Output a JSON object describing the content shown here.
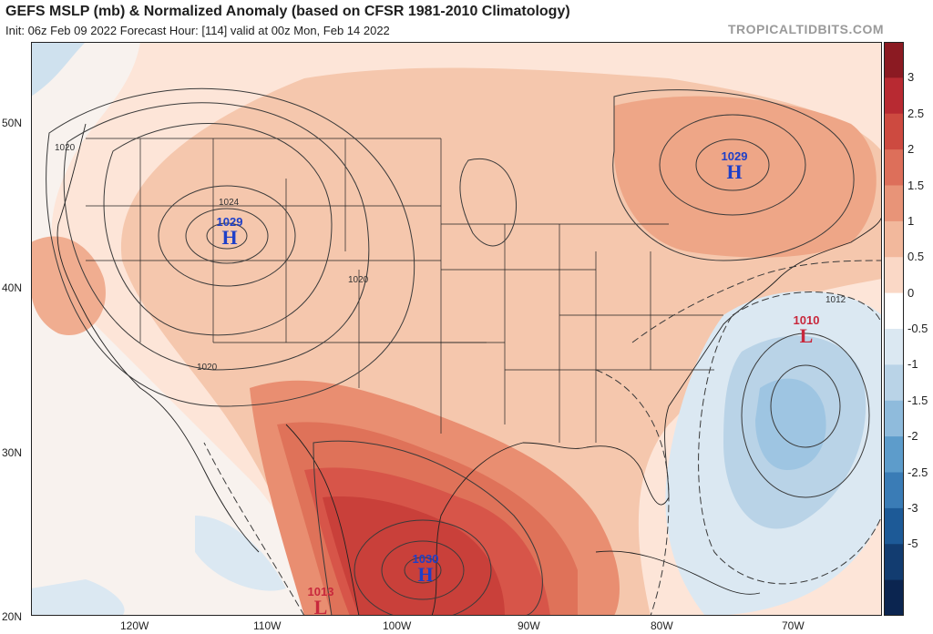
{
  "title": "GEFS MSLP (mb) & Normalized Anomaly (based on CFSR 1981-2010 Climatology)",
  "subtitle": "Init: 06z Feb 09 2022   Forecast Hour: [114]   valid at 00z Mon, Feb 14 2022",
  "brand": "TROPICALTIDBITS.COM",
  "lat_labels": [
    "50N",
    "40N",
    "30N",
    "20N"
  ],
  "lon_labels": [
    "120W",
    "110W",
    "100W",
    "90W",
    "80W",
    "70W"
  ],
  "isobar_labels": [
    "1020",
    "1024",
    "1020",
    "1020",
    "1012"
  ],
  "pressure_centers": [
    {
      "type": "H",
      "value": "1029",
      "name": "high-rockies"
    },
    {
      "type": "H",
      "value": "1029",
      "name": "high-quebec"
    },
    {
      "type": "H",
      "value": "1030",
      "name": "high-gulf"
    },
    {
      "type": "L",
      "value": "1010",
      "name": "low-atlantic"
    },
    {
      "type": "L",
      "value": "1013",
      "name": "low-mexico"
    }
  ],
  "colorbar": {
    "labels": [
      "3",
      "2.5",
      "2",
      "1.5",
      "1",
      "0.5",
      "0",
      "-0.5",
      "-1",
      "-1.5",
      "-2",
      "-2.5",
      "-3",
      "-5"
    ],
    "colors": [
      "#8b1a22",
      "#b82a32",
      "#cd4a40",
      "#dd6f5a",
      "#e89478",
      "#f2b89c",
      "#fad8c6",
      "#ffffff",
      "#dbe8f2",
      "#b9d3e7",
      "#8fbbdc",
      "#5d9ccb",
      "#3a7cb6",
      "#1d5a97",
      "#123c70",
      "#0b2550"
    ]
  }
}
